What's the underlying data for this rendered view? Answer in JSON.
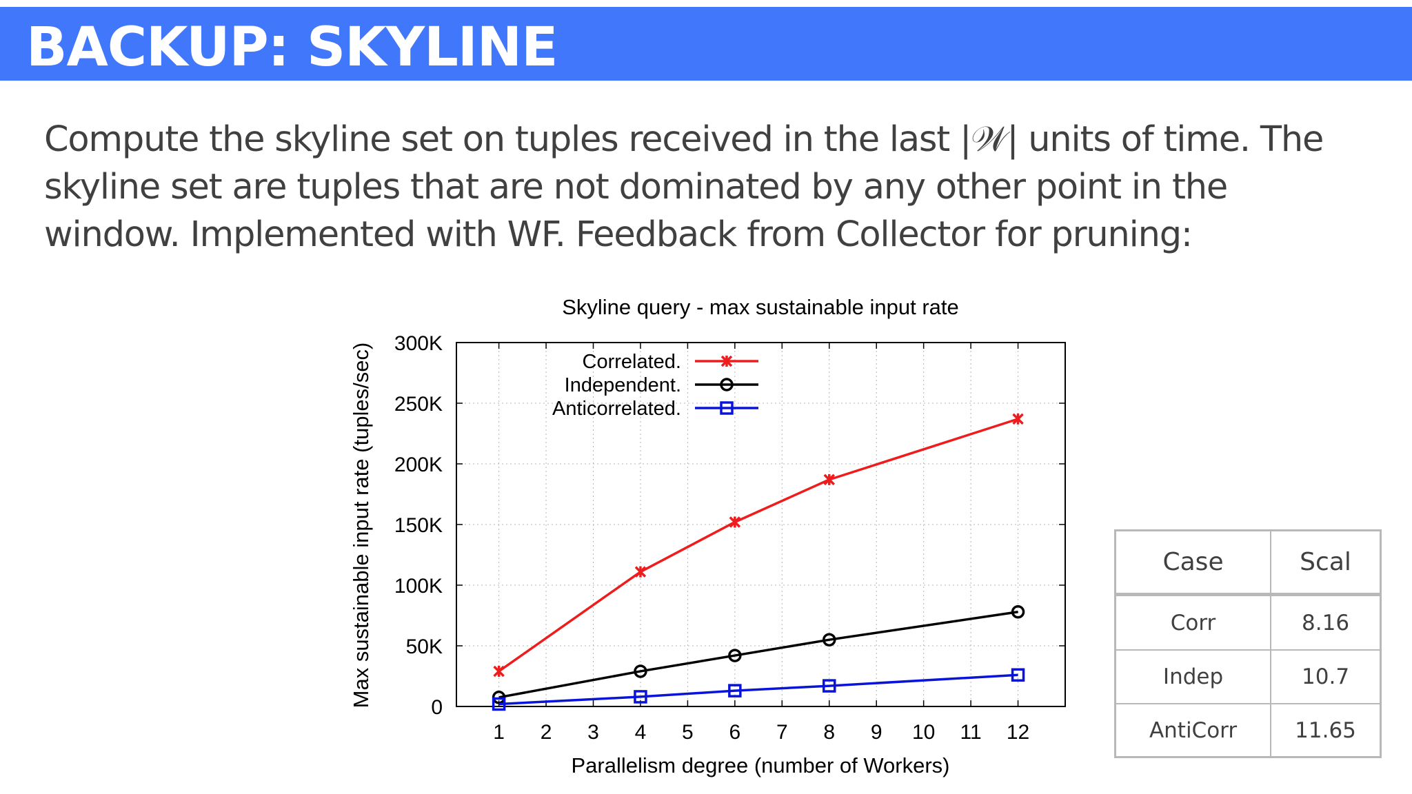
{
  "slide": {
    "title": "BACKUP: SKYLINE",
    "body_lines": [
      "Compute the skyline set on tuples received in the last |𝒲| units of time. The",
      "skyline set are tuples that are not dominated by any other point in the",
      "window. Implemented with WF. Feedback from Collector for pruning:"
    ]
  },
  "chart_data": {
    "type": "line",
    "title": "Skyline query - max sustainable input rate",
    "xlabel": "Parallelism degree (number of Workers)",
    "ylabel": "Max sustainable input rate (tuples/sec)",
    "x_ticks": [
      1,
      2,
      3,
      4,
      5,
      6,
      7,
      8,
      9,
      10,
      11,
      12
    ],
    "y_ticks": [
      0,
      50000,
      100000,
      150000,
      200000,
      250000,
      300000
    ],
    "y_tick_labels": [
      "0",
      "50K",
      "100K",
      "150K",
      "200K",
      "250K",
      "300K"
    ],
    "xlim": [
      0.1,
      13
    ],
    "ylim": [
      0,
      300000
    ],
    "grid": true,
    "legend_position": "top-left",
    "series": [
      {
        "name": "Correlated.",
        "color": "#ee1c1c",
        "marker": "cross",
        "x": [
          1,
          4,
          6,
          8,
          12
        ],
        "values": [
          29000,
          111000,
          152000,
          187000,
          237000
        ]
      },
      {
        "name": "Independent.",
        "color": "#000000",
        "marker": "circle",
        "x": [
          1,
          4,
          6,
          8,
          12
        ],
        "values": [
          7500,
          29000,
          42000,
          55000,
          78000
        ]
      },
      {
        "name": "Anticorrelated.",
        "color": "#0a14d8",
        "marker": "square",
        "x": [
          1,
          4,
          6,
          8,
          12
        ],
        "values": [
          2000,
          8000,
          13000,
          17000,
          26000
        ]
      }
    ]
  },
  "table": {
    "headers": [
      "Case",
      "Scal"
    ],
    "rows": [
      [
        "Corr",
        "8.16"
      ],
      [
        "Indep",
        "10.7"
      ],
      [
        "AntiCorr",
        "11.65"
      ]
    ]
  }
}
